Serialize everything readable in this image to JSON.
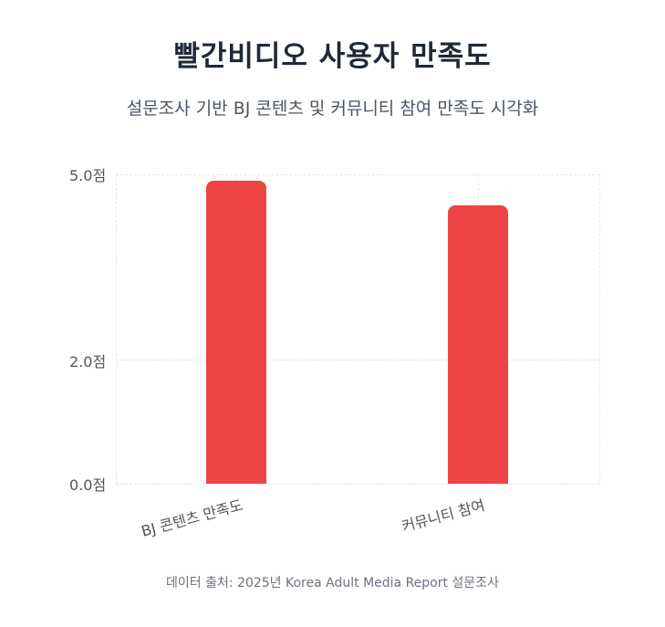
{
  "header": {
    "title": "빨간비디오 사용자 만족도",
    "subtitle": "설문조사 기반 BJ 콘텐츠 및 커뮤니티 참여 만족도 시각화"
  },
  "footer": {
    "source": "데이터 출처: 2025년 Korea Adult Media Report 설문조사"
  },
  "colors": {
    "bar": "#ef4444",
    "grid": "#e5e7eb",
    "title": "#1f2937"
  },
  "chart_data": {
    "type": "bar",
    "title": "빨간비디오 사용자 만족도",
    "subtitle": "설문조사 기반 BJ 콘텐츠 및 커뮤니티 참여 만족도 시각화",
    "categories": [
      "BJ 콘텐츠 만족도",
      "커뮤니티 참여"
    ],
    "values": [
      4.9,
      4.5
    ],
    "xlabel": "",
    "ylabel": "",
    "ylim": [
      0,
      5
    ],
    "yticks": [
      {
        "value": 0,
        "label": "0.0점"
      },
      {
        "value": 2,
        "label": "2.0점"
      },
      {
        "value": 5,
        "label": "5.0점"
      }
    ],
    "grid": true,
    "legend": null,
    "colors": [
      "#ef4444",
      "#ef4444"
    ],
    "annotation": "데이터 출처: 2025년 Korea Adult Media Report 설문조사"
  }
}
